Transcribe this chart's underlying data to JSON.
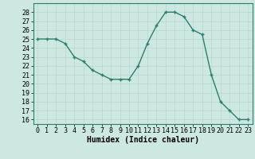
{
  "x": [
    0,
    1,
    2,
    3,
    4,
    5,
    6,
    7,
    8,
    9,
    10,
    11,
    12,
    13,
    14,
    15,
    16,
    17,
    18,
    19,
    20,
    21,
    22,
    23
  ],
  "y": [
    25.0,
    25.0,
    25.0,
    24.5,
    23.0,
    22.5,
    21.5,
    21.0,
    20.5,
    20.5,
    20.5,
    22.0,
    24.5,
    26.5,
    28.0,
    28.0,
    27.5,
    26.0,
    25.5,
    21.0,
    18.0,
    17.0,
    16.0,
    16.0
  ],
  "line_color": "#2e7d6e",
  "marker": "+",
  "marker_size": 3,
  "marker_linewidth": 1.0,
  "bg_color": "#cce8e0",
  "grid_color": "#b8d8d0",
  "xlabel": "Humidex (Indice chaleur)",
  "xlim": [
    -0.5,
    23.5
  ],
  "ylim": [
    15.5,
    29.0
  ],
  "yticks": [
    16,
    17,
    18,
    19,
    20,
    21,
    22,
    23,
    24,
    25,
    26,
    27,
    28
  ],
  "xticks": [
    0,
    1,
    2,
    3,
    4,
    5,
    6,
    7,
    8,
    9,
    10,
    11,
    12,
    13,
    14,
    15,
    16,
    17,
    18,
    19,
    20,
    21,
    22,
    23
  ],
  "xlabel_fontsize": 7,
  "tick_fontsize": 6,
  "linewidth": 1.0
}
